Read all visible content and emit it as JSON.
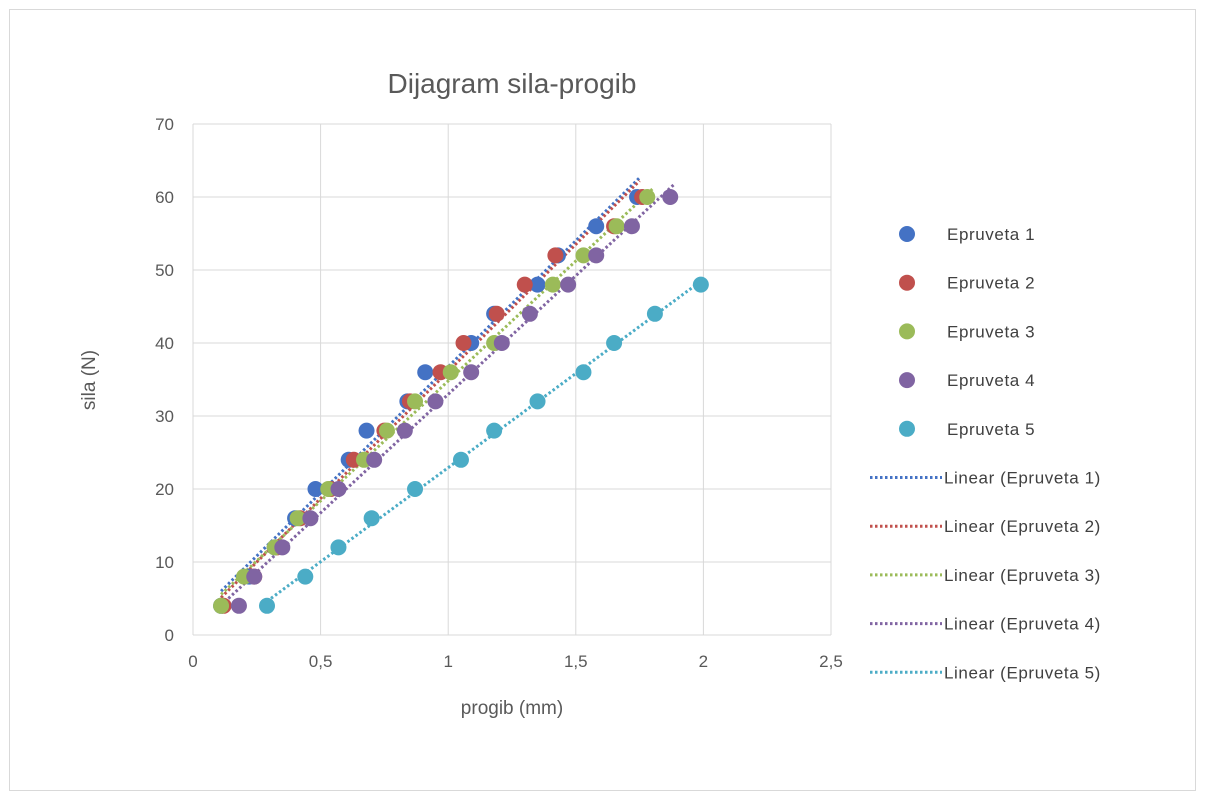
{
  "chart_data": {
    "type": "scatter",
    "title": "Dijagram sila-progib",
    "xlabel": "progib (mm)",
    "ylabel": "sila (N)",
    "xlim": [
      0,
      2.5
    ],
    "ylim": [
      0,
      70
    ],
    "x_ticks": [
      "0",
      "0,5",
      "1",
      "1,5",
      "2",
      "2,5"
    ],
    "y_ticks": [
      "0",
      "10",
      "20",
      "30",
      "40",
      "50",
      "60",
      "70"
    ],
    "grid": "on",
    "legend_position": "right",
    "series": [
      {
        "name": "Epruveta 1",
        "color": "#4472C4",
        "points": [
          {
            "x": 0.11,
            "y": 4
          },
          {
            "x": 0.22,
            "y": 8
          },
          {
            "x": 0.32,
            "y": 12
          },
          {
            "x": 0.4,
            "y": 16
          },
          {
            "x": 0.48,
            "y": 20
          },
          {
            "x": 0.61,
            "y": 24
          },
          {
            "x": 0.68,
            "y": 28
          },
          {
            "x": 0.84,
            "y": 32
          },
          {
            "x": 0.91,
            "y": 36
          },
          {
            "x": 1.09,
            "y": 40
          },
          {
            "x": 1.18,
            "y": 44
          },
          {
            "x": 1.35,
            "y": 48
          },
          {
            "x": 1.43,
            "y": 52
          },
          {
            "x": 1.58,
            "y": 56
          },
          {
            "x": 1.74,
            "y": 60
          }
        ],
        "trend_x": [
          0.11,
          1.75
        ]
      },
      {
        "name": "Epruveta 2",
        "color": "#C0504D",
        "points": [
          {
            "x": 0.12,
            "y": 4
          },
          {
            "x": 0.24,
            "y": 8
          },
          {
            "x": 0.33,
            "y": 12
          },
          {
            "x": 0.42,
            "y": 16
          },
          {
            "x": 0.54,
            "y": 20
          },
          {
            "x": 0.63,
            "y": 24
          },
          {
            "x": 0.75,
            "y": 28
          },
          {
            "x": 0.85,
            "y": 32
          },
          {
            "x": 0.97,
            "y": 36
          },
          {
            "x": 1.06,
            "y": 40
          },
          {
            "x": 1.19,
            "y": 44
          },
          {
            "x": 1.3,
            "y": 48
          },
          {
            "x": 1.42,
            "y": 52
          },
          {
            "x": 1.65,
            "y": 56
          },
          {
            "x": 1.76,
            "y": 60
          }
        ],
        "trend_x": [
          0.11,
          1.75
        ]
      },
      {
        "name": "Epruveta 3",
        "color": "#9BBB59",
        "points": [
          {
            "x": 0.11,
            "y": 4
          },
          {
            "x": 0.2,
            "y": 8
          },
          {
            "x": 0.32,
            "y": 12
          },
          {
            "x": 0.41,
            "y": 16
          },
          {
            "x": 0.53,
            "y": 20
          },
          {
            "x": 0.67,
            "y": 24
          },
          {
            "x": 0.76,
            "y": 28
          },
          {
            "x": 0.87,
            "y": 32
          },
          {
            "x": 1.01,
            "y": 36
          },
          {
            "x": 1.18,
            "y": 40
          },
          {
            "x": 1.41,
            "y": 48
          },
          {
            "x": 1.53,
            "y": 52
          },
          {
            "x": 1.66,
            "y": 56
          },
          {
            "x": 1.78,
            "y": 60
          }
        ],
        "trend_x": [
          0.11,
          1.8
        ]
      },
      {
        "name": "Epruveta 4",
        "color": "#8064A2",
        "points": [
          {
            "x": 0.18,
            "y": 4
          },
          {
            "x": 0.24,
            "y": 8
          },
          {
            "x": 0.35,
            "y": 12
          },
          {
            "x": 0.46,
            "y": 16
          },
          {
            "x": 0.57,
            "y": 20
          },
          {
            "x": 0.71,
            "y": 24
          },
          {
            "x": 0.83,
            "y": 28
          },
          {
            "x": 0.95,
            "y": 32
          },
          {
            "x": 1.09,
            "y": 36
          },
          {
            "x": 1.21,
            "y": 40
          },
          {
            "x": 1.32,
            "y": 44
          },
          {
            "x": 1.47,
            "y": 48
          },
          {
            "x": 1.58,
            "y": 52
          },
          {
            "x": 1.72,
            "y": 56
          },
          {
            "x": 1.87,
            "y": 60
          }
        ],
        "trend_x": [
          0.11,
          1.89
        ]
      },
      {
        "name": "Epruveta 5",
        "color": "#4BACC6",
        "points": [
          {
            "x": 0.29,
            "y": 4
          },
          {
            "x": 0.44,
            "y": 8
          },
          {
            "x": 0.57,
            "y": 12
          },
          {
            "x": 0.7,
            "y": 16
          },
          {
            "x": 0.87,
            "y": 20
          },
          {
            "x": 1.05,
            "y": 24
          },
          {
            "x": 1.18,
            "y": 28
          },
          {
            "x": 1.35,
            "y": 32
          },
          {
            "x": 1.53,
            "y": 36
          },
          {
            "x": 1.65,
            "y": 40
          },
          {
            "x": 1.81,
            "y": 44
          },
          {
            "x": 1.99,
            "y": 48
          }
        ],
        "trend_x": [
          0.29,
          2.0
        ]
      }
    ],
    "trendlines": [
      {
        "name": "Linear (Epruveta 1)",
        "series": 0
      },
      {
        "name": "Linear (Epruveta 2)",
        "series": 1
      },
      {
        "name": "Linear (Epruveta 3)",
        "series": 2
      },
      {
        "name": "Linear (Epruveta 4)",
        "series": 3
      },
      {
        "name": "Linear (Epruveta 5)",
        "series": 4
      }
    ]
  }
}
